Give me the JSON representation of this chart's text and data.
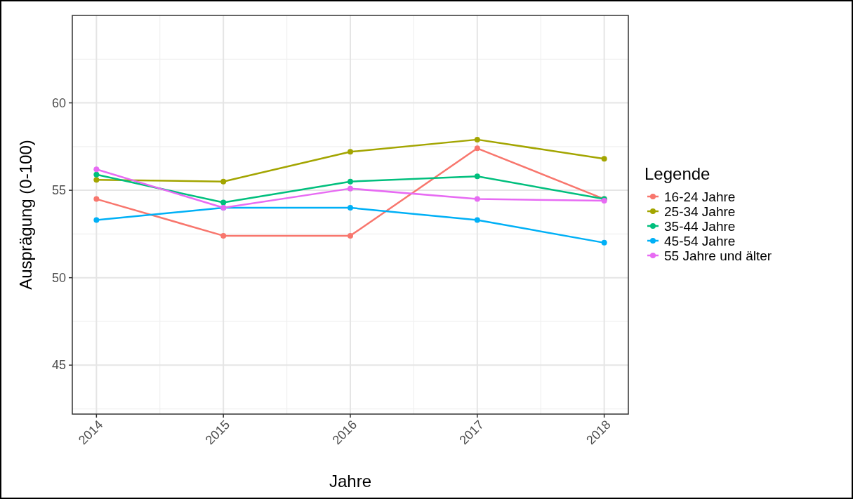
{
  "chart_data": {
    "type": "line",
    "xlabel": "Jahre",
    "ylabel": "Ausprägung (0-100)",
    "legend_title": "Legende",
    "x": [
      2014,
      2015,
      2016,
      2017,
      2018
    ],
    "xlim": [
      2013.81,
      2018.19
    ],
    "xticks": [
      2014,
      2015,
      2016,
      2017,
      2018
    ],
    "ylim": [
      42.2,
      65
    ],
    "yticks": [
      45,
      50,
      55,
      60
    ],
    "grid": true,
    "legend": "right",
    "marker": "circle",
    "line_style": "solid",
    "series": [
      {
        "name": "16-24 Jahre",
        "color": "#f8766d",
        "values": [
          54.5,
          52.4,
          52.4,
          57.4,
          54.5
        ]
      },
      {
        "name": "25-34 Jahre",
        "color": "#a3a500",
        "values": [
          55.6,
          55.5,
          57.2,
          57.9,
          56.8
        ]
      },
      {
        "name": "35-44 Jahre",
        "color": "#00bf7d",
        "values": [
          55.9,
          54.3,
          55.5,
          55.8,
          54.5
        ]
      },
      {
        "name": "45-54 Jahre",
        "color": "#00b0f6",
        "values": [
          53.3,
          54.0,
          54.0,
          53.3,
          52.0
        ]
      },
      {
        "name": "55 Jahre und älter",
        "color": "#e76bf3",
        "values": [
          56.2,
          54.0,
          55.1,
          54.5,
          54.4
        ]
      }
    ]
  }
}
